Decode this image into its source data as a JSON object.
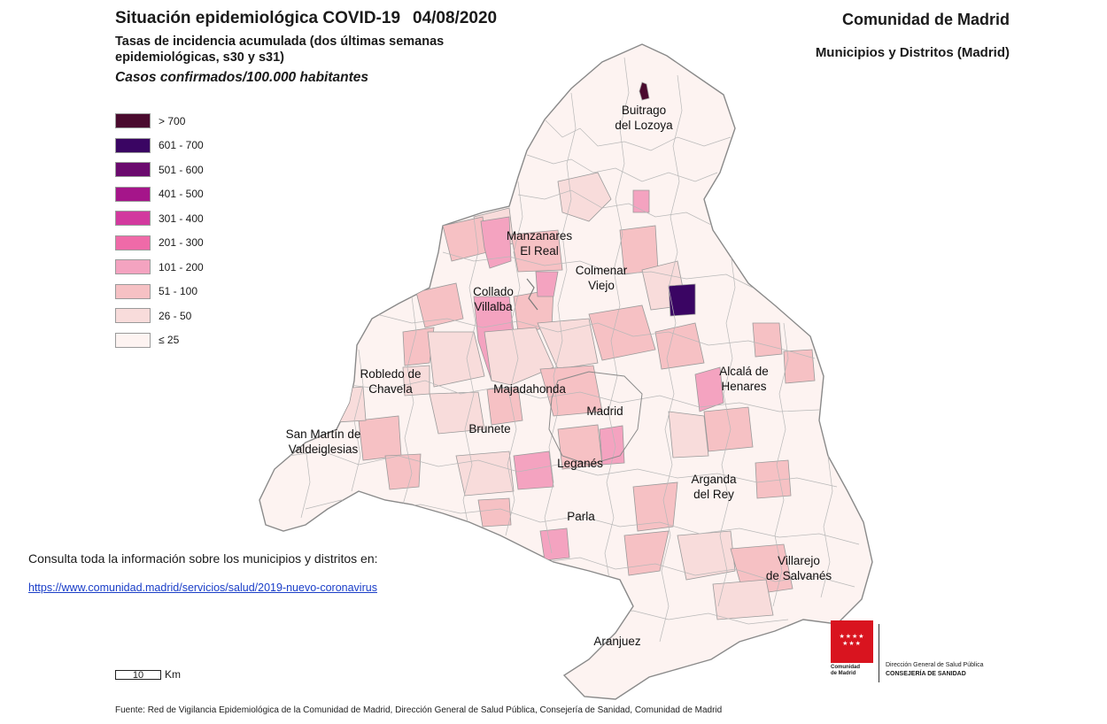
{
  "header": {
    "title": "Situación epidemiológica COVID-19",
    "date": "04/08/2020",
    "subtitle": "Tasas de incidencia acumulada (dos últimas semanas epidemiológicas, s30 y s31)",
    "unit": "Casos confirmados/100.000 habitantes",
    "region": "Comunidad de Madrid",
    "scope": "Municipios y Distritos (Madrid)"
  },
  "legend": [
    {
      "label": "> 700",
      "color": "#4a0a2e"
    },
    {
      "label": "601 - 700",
      "color": "#3a0563"
    },
    {
      "label": "501 - 600",
      "color": "#6b0a6e"
    },
    {
      "label": "401 - 500",
      "color": "#a5158a"
    },
    {
      "label": "301 - 400",
      "color": "#d2399e"
    },
    {
      "label": "201 - 300",
      "color": "#ef6aa8"
    },
    {
      "label": "101 - 200",
      "color": "#f4a3c0"
    },
    {
      "label": "51 - 100",
      "color": "#f6c1c4"
    },
    {
      "label": "26 - 50",
      "color": "#f8dcdb"
    },
    {
      "label": "≤ 25",
      "color": "#fdf3f1"
    }
  ],
  "places": [
    {
      "name": "Buitrago",
      "name2": "del Lozoya"
    },
    {
      "name": "Manzanares",
      "name2": "El Real"
    },
    {
      "name": "Colmenar",
      "name2": "Viejo"
    },
    {
      "name": "Collado",
      "name2": "Villalba"
    },
    {
      "name": "Alcalá de",
      "name2": "Henares"
    },
    {
      "name": "Robledo de",
      "name2": "Chavela"
    },
    {
      "name": "Majadahonda",
      "name2": ""
    },
    {
      "name": "Madrid",
      "name2": ""
    },
    {
      "name": "Brunete",
      "name2": ""
    },
    {
      "name": "San Martín de",
      "name2": "Valdeiglesias"
    },
    {
      "name": "Leganés",
      "name2": ""
    },
    {
      "name": "Arganda",
      "name2": "del Rey"
    },
    {
      "name": "Parla",
      "name2": ""
    },
    {
      "name": "Villarejo",
      "name2": "de Salvanés"
    },
    {
      "name": "Aranjuez",
      "name2": ""
    }
  ],
  "consulta": "Consulta toda la información sobre los municipios y distritos en:",
  "link": "https://www.comunidad.madrid/servicios/salud/2019-nuevo-coronavirus",
  "scale": {
    "value": "10",
    "unit": "Km"
  },
  "logo": {
    "line1": "Comunidad",
    "line2": "de Madrid"
  },
  "department": {
    "line1": "Dirección General de Salud Pública",
    "line2": "CONSEJERÍA DE SANIDAD"
  },
  "source": "Fuente: Red de Vigilancia Epidemiológica de la Comunidad de Madrid, Dirección General de Salud Pública, Consejería de Sanidad, Comunidad de Madrid"
}
